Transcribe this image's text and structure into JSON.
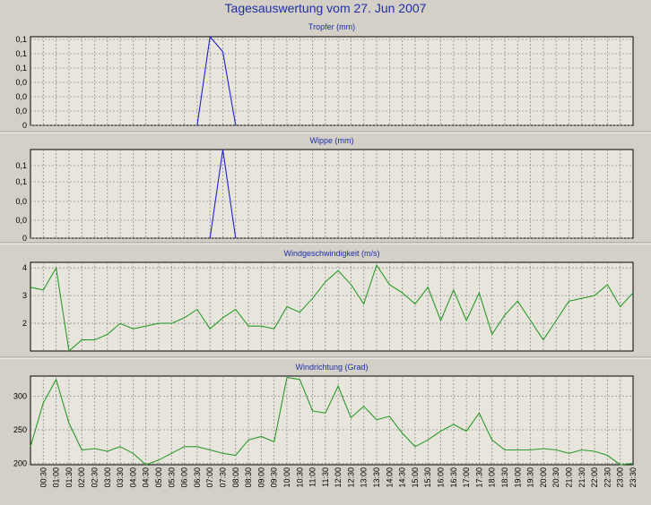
{
  "page_title": "Tagesauswertung vom 27. Jun 2007",
  "colors": {
    "frame_bg": "#d4d0c8",
    "plot_bg": "#e8e6dc",
    "grid": "#8c8c8c",
    "title": "#1c2fa8",
    "rain": "#2222cc",
    "wind": "#2a9a2a"
  },
  "x_ticks": [
    "00:30",
    "01:00",
    "01:30",
    "02:00",
    "02:30",
    "03:00",
    "03:30",
    "04:00",
    "04:30",
    "05:00",
    "05:30",
    "06:00",
    "06:30",
    "07:00",
    "07:30",
    "08:00",
    "08:30",
    "09:00",
    "09:30",
    "10:00",
    "10:30",
    "11:00",
    "11:30",
    "12:00",
    "12:30",
    "13:00",
    "13:30",
    "14:00",
    "14:30",
    "15:00",
    "15:30",
    "16:00",
    "16:30",
    "17:00",
    "17:30",
    "18:00",
    "18:30",
    "19:00",
    "19:30",
    "20:00",
    "20:30",
    "21:00",
    "21:30",
    "22:00",
    "22:30",
    "23:00",
    "23:30"
  ],
  "chart_data": [
    {
      "type": "line",
      "title": "Tropfer (mm)",
      "ylim": [
        0,
        0.1
      ],
      "ytick_labels": [
        "0,1",
        "0,1",
        "0,1",
        "0,0",
        "0,0",
        "0,0",
        "0"
      ],
      "grid": true,
      "series": [
        {
          "color": "#2222cc",
          "x": [
            "06:30",
            "07:00",
            "07:30",
            "08:00"
          ],
          "y": [
            0,
            0.1,
            0.083,
            0
          ]
        }
      ]
    },
    {
      "type": "line",
      "title": "Wippe (mm)",
      "ylim": [
        0,
        0.1
      ],
      "ytick_labels": [
        "0,1",
        "0,1",
        "0,0",
        "0,0",
        "0"
      ],
      "grid": true,
      "series": [
        {
          "color": "#2222cc",
          "x": [
            "07:00",
            "07:30",
            "08:00"
          ],
          "y": [
            0,
            0.1,
            0
          ]
        }
      ]
    },
    {
      "type": "line",
      "title": "Windgeschwindigkeit (m/s)",
      "ylim": [
        1,
        4.2
      ],
      "ytick_labels": [
        "4",
        "3",
        "2"
      ],
      "ytick_values": [
        4,
        3,
        2
      ],
      "grid": true,
      "series": [
        {
          "color": "#2a9a2a",
          "x": [
            "00:00",
            "00:30",
            "01:00",
            "01:30",
            "02:00",
            "02:30",
            "03:00",
            "03:30",
            "04:00",
            "04:30",
            "05:00",
            "05:30",
            "06:00",
            "06:30",
            "07:00",
            "07:30",
            "08:00",
            "08:30",
            "09:00",
            "09:30",
            "10:00",
            "10:30",
            "11:00",
            "11:30",
            "12:00",
            "12:30",
            "13:00",
            "13:30",
            "14:00",
            "14:30",
            "15:00",
            "15:30",
            "16:00",
            "16:30",
            "17:00",
            "17:30",
            "18:00",
            "18:30",
            "19:00",
            "19:30",
            "20:00",
            "20:30",
            "21:00",
            "21:30",
            "22:00",
            "22:30",
            "23:00",
            "23:30"
          ],
          "y": [
            3.3,
            3.2,
            4.0,
            1.0,
            1.4,
            1.4,
            1.6,
            2.0,
            1.8,
            1.9,
            2.0,
            2.0,
            2.2,
            2.5,
            1.8,
            2.2,
            2.5,
            1.9,
            1.9,
            1.8,
            2.6,
            2.4,
            2.9,
            3.5,
            3.9,
            3.4,
            2.7,
            4.1,
            3.4,
            3.1,
            2.7,
            3.3,
            2.1,
            3.2,
            2.1,
            3.1,
            1.6,
            2.3,
            2.8,
            2.1,
            1.4,
            2.1,
            2.8,
            2.9,
            3.0,
            3.4,
            2.6,
            3.1
          ]
        }
      ]
    },
    {
      "type": "line",
      "title": "Windrichtung (Grad)",
      "ylim": [
        198,
        330
      ],
      "ytick_labels": [
        "300",
        "250",
        "200"
      ],
      "ytick_values": [
        300,
        250,
        200
      ],
      "grid": true,
      "series": [
        {
          "color": "#2a9a2a",
          "x": [
            "00:00",
            "00:30",
            "01:00",
            "01:30",
            "02:00",
            "02:30",
            "03:00",
            "03:30",
            "04:00",
            "04:30",
            "05:00",
            "05:30",
            "06:00",
            "06:30",
            "07:00",
            "07:30",
            "08:00",
            "08:30",
            "09:00",
            "09:30",
            "10:00",
            "10:30",
            "11:00",
            "11:30",
            "12:00",
            "12:30",
            "13:00",
            "13:30",
            "14:00",
            "14:30",
            "15:00",
            "15:30",
            "16:00",
            "16:30",
            "17:00",
            "17:30",
            "18:00",
            "18:30",
            "19:00",
            "19:30",
            "20:00",
            "20:30",
            "21:00",
            "21:30",
            "22:00",
            "22:30",
            "23:00",
            "23:30"
          ],
          "y": [
            225,
            290,
            325,
            260,
            220,
            222,
            218,
            225,
            215,
            198,
            205,
            215,
            225,
            225,
            220,
            215,
            212,
            235,
            240,
            232,
            328,
            325,
            278,
            275,
            315,
            268,
            285,
            265,
            270,
            245,
            225,
            235,
            248,
            258,
            248,
            275,
            235,
            220,
            220,
            220,
            222,
            220,
            215,
            220,
            218,
            212,
            198,
            200
          ]
        }
      ]
    }
  ]
}
